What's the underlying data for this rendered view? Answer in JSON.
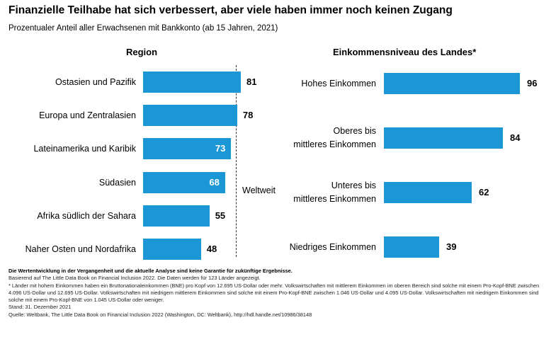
{
  "header": {
    "title": "Finanzielle Teilhabe hat sich verbessert, aber viele haben immer noch keinen Zugang",
    "subtitle": "Prozentualer Anteil aller Erwachsenen mit Bankkonto (ab 15 Jahren, 2021)"
  },
  "chart_data": [
    {
      "type": "bar",
      "orientation": "horizontal",
      "title": "Region",
      "categories": [
        "Ostasien und Pazifik",
        "Europa und Zentralasien",
        "Lateinamerika und Karibik",
        "Südasien",
        "Afrika südlich der Sahara",
        "Naher Osten und Nordafrika"
      ],
      "values": [
        81,
        78,
        73,
        68,
        55,
        48
      ],
      "reference_line": {
        "label": "Weltweit",
        "value": 76
      },
      "xlim": [
        0,
        100
      ],
      "color": "#1b97d6"
    },
    {
      "type": "bar",
      "orientation": "horizontal",
      "title": "Einkommensniveau des Landes*",
      "categories": [
        [
          "Hohes Einkommen"
        ],
        [
          "Oberes bis",
          "mittleres Einkommen"
        ],
        [
          "Unteres bis",
          "mittleres Einkommen"
        ],
        [
          "Niedriges Einkommen"
        ]
      ],
      "values": [
        96,
        84,
        62,
        39
      ],
      "xlim": [
        0,
        100
      ],
      "color": "#1b97d6"
    }
  ],
  "notes": {
    "disclaimer": "Die Wertentwicklung in der Vergangenheit und die aktuelle Analyse sind keine Garantie für zukünftige Ergebnisse.",
    "basis": "Basierend auf The Little Data Book on Financial Inclusion 2022. Die Daten werden für 123 Länder angezeigt.",
    "footnote": "* Länder mit hohem Einkommen haben ein Bruttonationaleinkommen (BNE) pro Kopf von 12.695 US-Dollar oder mehr. Volkswirtschaften mit mittlerem Einkommen im oberen Bereich sind solche mit einem Pro-Kopf-BNE zwischen 4.096 US-Dollar und 12.695 US-Dollar. Volkswirtschaften mit niedrigem mittlerem Einkommen sind solche mit einem Pro-Kopf-BNE zwischen 1.046 US-Dollar und 4.095 US-Dollar. Volkswirtschaften mit niedrigem Einkommen sind solche mit einem Pro-Kopf-BNE von 1.045 US-Dollar oder weniger.",
    "date": "Stand: 31. Dezember 2021",
    "source": "Quelle: Weltbank, The Little Data Book on Financial Inclusion 2022 (Washington, DC: Weltbank), http://hdl.handle.net/10986/38148"
  }
}
